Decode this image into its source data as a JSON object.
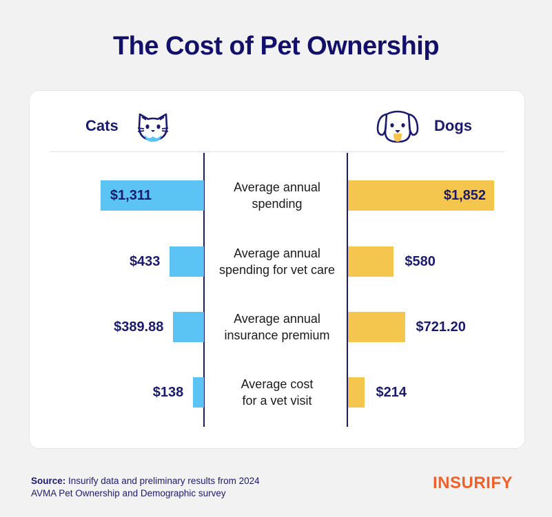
{
  "title": "The Cost of Pet Ownership",
  "chart_data": {
    "type": "bar",
    "categories": [
      "Average annual spending",
      "Average annual spending for vet care",
      "Average annual insurance premium",
      "Average cost for a vet visit"
    ],
    "series": [
      {
        "name": "Cats",
        "values": [
          1311,
          433,
          389.88,
          138
        ],
        "labels": [
          "$1,311",
          "$433",
          "$389.88",
          "$138"
        ],
        "color": "#5bc4f5"
      },
      {
        "name": "Dogs",
        "values": [
          1852,
          580,
          721.2,
          214
        ],
        "labels": [
          "$1,852",
          "$580",
          "$721.20",
          "$214"
        ],
        "color": "#f5c64d"
      }
    ],
    "orientation": "diverging-horizontal",
    "xlim": [
      0,
      1852
    ]
  },
  "category_lines": [
    [
      "Average annual",
      "spending"
    ],
    [
      "Average annual",
      "spending for vet care"
    ],
    [
      "Average annual",
      "insurance premium"
    ],
    [
      "Average cost",
      "for a vet visit"
    ]
  ],
  "icons": {
    "cats": "cat-icon",
    "dogs": "dog-icon"
  },
  "colors": {
    "navy": "#1a1a6e",
    "cats": "#5bc4f5",
    "dogs": "#f5c64d",
    "brand": "#f0602a"
  },
  "footer": {
    "source_label": "Source:",
    "source_text": " Insurify data and preliminary results from 2024",
    "source_text_2": "AVMA Pet Ownership and Demographic survey",
    "brand": "INSURIFY"
  }
}
